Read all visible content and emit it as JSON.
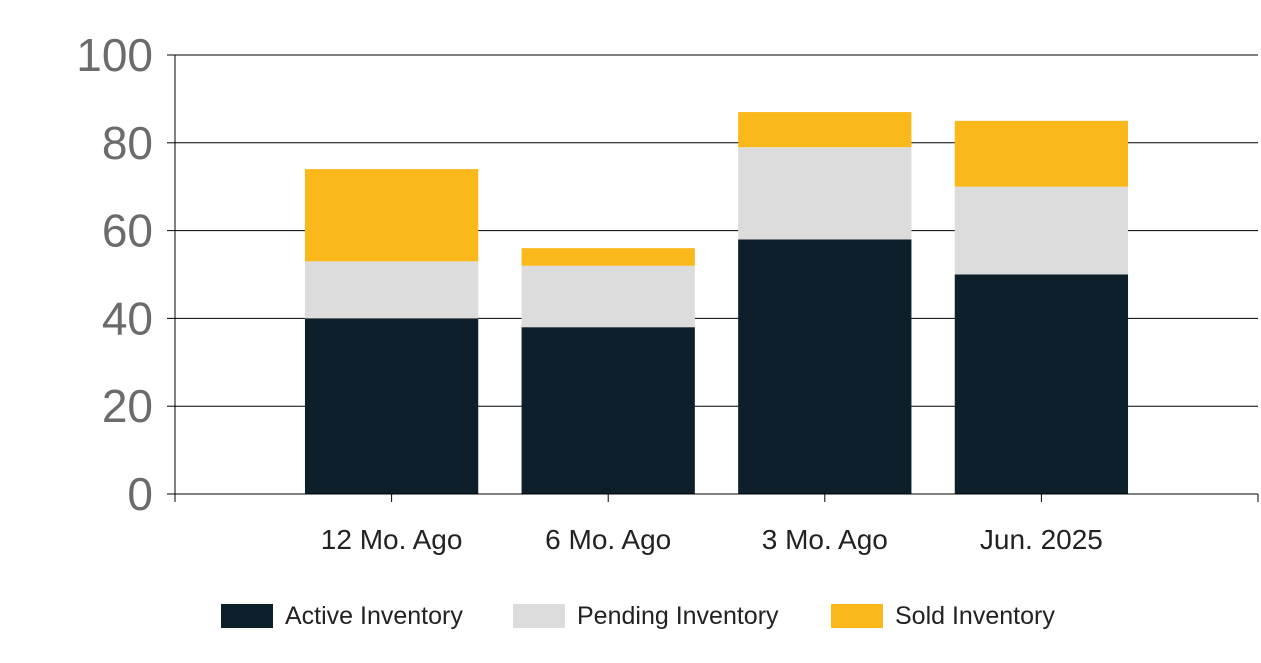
{
  "chart_data": {
    "type": "bar",
    "stacked": true,
    "categories": [
      "12 Mo. Ago",
      "6 Mo. Ago",
      "3 Mo. Ago",
      "Jun. 2025"
    ],
    "series": [
      {
        "name": "Active Inventory",
        "color": "#0d1f2a",
        "values": [
          40,
          38,
          58,
          50
        ]
      },
      {
        "name": "Pending Inventory",
        "color": "#dcdcdc",
        "values": [
          13,
          14,
          21,
          20
        ]
      },
      {
        "name": "Sold Inventory",
        "color": "#fbb81a",
        "values": [
          21,
          4,
          8,
          15
        ]
      }
    ],
    "ylim": [
      0,
      100
    ],
    "yticks": [
      0,
      20,
      40,
      60,
      80,
      100
    ],
    "grid": true,
    "legend_position": "bottom"
  }
}
